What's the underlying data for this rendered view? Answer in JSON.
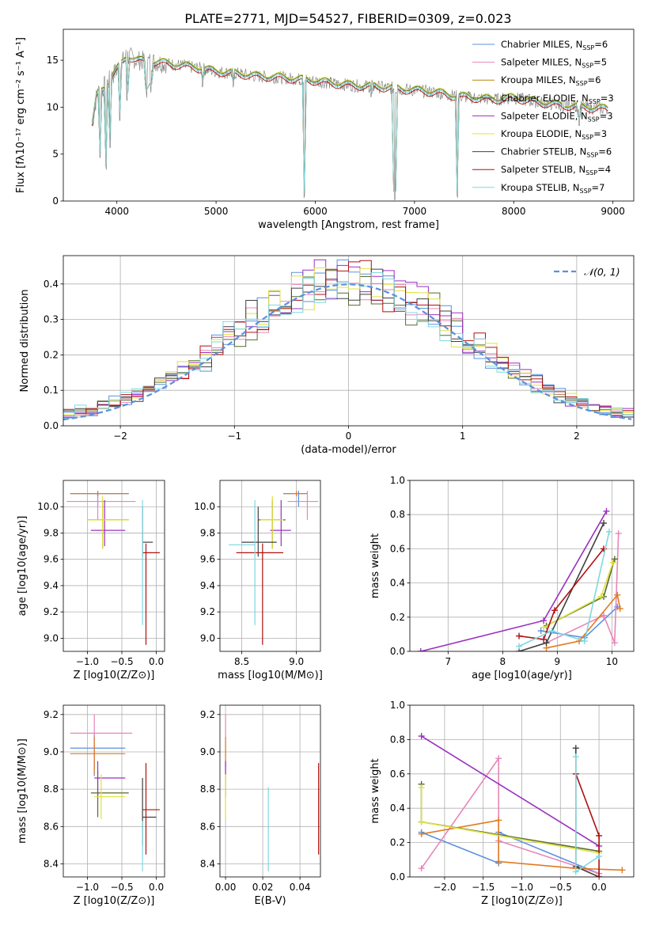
{
  "figure_title": "PLATE=2771, MJD=54527, FIBERID=0309, z=0.023",
  "colors": {
    "Chabrier MILES": "#5b8fe0",
    "Salpeter MILES": "#e786b8",
    "Kroupa MILES": "#b8860b",
    "Chabrier ELODIE": "#556b2f",
    "Salpeter ELODIE": "#9b30c0",
    "Kroupa ELODIE": "#e0e040",
    "Chabrier STELIB": "#404040",
    "Salpeter STELIB": "#b01010",
    "Kroupa STELIB": "#7fd8e0",
    "orange": "#e07b20",
    "normal_curve": "#5b8fe0"
  },
  "chart_data": [
    {
      "id": "spectrum",
      "type": "line",
      "xlabel": "wavelength [Angstrom, rest frame]",
      "ylabel": "Flux [fλ10⁻¹⁷ erg cm⁻² s⁻¹ A⁻¹]",
      "xlim": [
        3460,
        9210
      ],
      "ylim": [
        0,
        18.3
      ],
      "xticks": [
        4000,
        5000,
        6000,
        7000,
        8000,
        9000
      ],
      "yticks": [
        0,
        5,
        10,
        15
      ],
      "legend": "top-right",
      "legend_entries": [
        {
          "name": "Chabrier MILES",
          "nssp": "6"
        },
        {
          "name": "Salpeter MILES",
          "nssp": "5"
        },
        {
          "name": "Kroupa MILES",
          "nssp": "6"
        },
        {
          "name": "Chabrier ELODIE",
          "nssp": "3"
        },
        {
          "name": "Salpeter ELODIE",
          "nssp": "3"
        },
        {
          "name": "Kroupa ELODIE",
          "nssp": "3"
        },
        {
          "name": "Chabrier STELIB",
          "nssp": "6"
        },
        {
          "name": "Salpeter STELIB",
          "nssp": "4"
        },
        {
          "name": "Kroupa STELIB",
          "nssp": "7"
        }
      ],
      "continuum": [
        [
          3750,
          8.0
        ],
        [
          3800,
          11.5
        ],
        [
          3900,
          12.5
        ],
        [
          4000,
          14.0
        ],
        [
          4100,
          15.5
        ],
        [
          4200,
          15.0
        ],
        [
          4400,
          14.8
        ],
        [
          4600,
          14.5
        ],
        [
          4800,
          14.2
        ],
        [
          5000,
          13.8
        ],
        [
          5200,
          13.6
        ],
        [
          5400,
          13.3
        ],
        [
          5600,
          13.2
        ],
        [
          5800,
          13.0
        ],
        [
          6000,
          12.8
        ],
        [
          6200,
          12.5
        ],
        [
          6400,
          12.3
        ],
        [
          6600,
          12.2
        ],
        [
          6800,
          12.0
        ],
        [
          7000,
          11.8
        ],
        [
          7200,
          11.6
        ],
        [
          7400,
          11.2
        ],
        [
          7600,
          11.0
        ],
        [
          7800,
          10.8
        ],
        [
          8000,
          11.0
        ],
        [
          8200,
          10.6
        ],
        [
          8400,
          10.3
        ],
        [
          8600,
          10.1
        ],
        [
          8800,
          9.9
        ],
        [
          8950,
          9.8
        ]
      ],
      "features": [
        [
          3830,
          4.2
        ],
        [
          3890,
          3.0
        ],
        [
          3935,
          5.5
        ],
        [
          4030,
          8.5
        ],
        [
          4102,
          10.5
        ],
        [
          4300,
          11.0
        ],
        [
          4340,
          11.5
        ],
        [
          4861,
          12.0
        ],
        [
          5175,
          11.8
        ],
        [
          5890,
          0.0
        ],
        [
          6563,
          10.5
        ],
        [
          6800,
          0.0
        ],
        [
          7430,
          0.0
        ],
        [
          8500,
          9.0
        ],
        [
          8660,
          8.0
        ]
      ]
    },
    {
      "id": "residuals",
      "type": "histogram",
      "xlabel": "(data-model)/error",
      "ylabel": "Normed distribution",
      "xlim": [
        -2.5,
        2.5
      ],
      "ylim": [
        0,
        0.48
      ],
      "xticks": [
        -2,
        -1,
        0,
        1,
        2
      ],
      "yticks": [
        0.0,
        0.1,
        0.2,
        0.3,
        0.4
      ],
      "legend_label": "𝒩(0, 1)",
      "legend": "top-right"
    },
    {
      "id": "age_vs_Z",
      "type": "errorbar",
      "xlabel": "Z [log10(Z/Z⊙)]",
      "ylabel": "age [log10(age/yr)]",
      "xlim": [
        -1.35,
        0.12
      ],
      "ylim": [
        8.9,
        10.2
      ],
      "xticks": [
        -1.0,
        -0.5,
        0.0
      ],
      "yticks": [
        9.0,
        9.2,
        9.4,
        9.6,
        9.8,
        10.0
      ],
      "points": [
        {
          "s": "Chabrier MILES",
          "x": -0.85,
          "xlo": -1.25,
          "xhi": -0.4,
          "y": 10.1,
          "ylo": 10.0,
          "yhi": 10.12
        },
        {
          "s": "Salpeter MILES",
          "x": -0.85,
          "xlo": -1.3,
          "xhi": -0.3,
          "y": 10.04,
          "ylo": 9.9,
          "yhi": 10.1
        },
        {
          "s": "orange",
          "x": -0.85,
          "xlo": -1.25,
          "xhi": -0.4,
          "y": 10.1,
          "ylo": 10.08,
          "yhi": 10.12
        },
        {
          "s": "Chabrier ELODIE",
          "x": -0.78,
          "xlo": -1.0,
          "xhi": -0.4,
          "y": 9.9,
          "ylo": 9.68,
          "yhi": 10.05
        },
        {
          "s": "Salpeter ELODIE",
          "x": -0.75,
          "xlo": -0.95,
          "xhi": -0.45,
          "y": 9.82,
          "ylo": 9.7,
          "yhi": 10.05
        },
        {
          "s": "Kroupa ELODIE",
          "x": -0.78,
          "xlo": -1.0,
          "xhi": -0.4,
          "y": 9.9,
          "ylo": 9.68,
          "yhi": 10.08
        },
        {
          "s": "Chabrier STELIB",
          "x": -0.2,
          "xlo": -0.2,
          "xhi": -0.05,
          "y": 9.73,
          "ylo": 9.62,
          "yhi": 10.0
        },
        {
          "s": "Salpeter STELIB",
          "x": -0.15,
          "xlo": -0.2,
          "xhi": 0.05,
          "y": 9.65,
          "ylo": 8.95,
          "yhi": 9.72
        },
        {
          "s": "Kroupa STELIB",
          "x": -0.2,
          "xlo": -0.2,
          "xhi": -0.2,
          "y": 9.7,
          "ylo": 9.1,
          "yhi": 10.05
        }
      ]
    },
    {
      "id": "age_vs_mass",
      "type": "errorbar",
      "xlabel": "mass [log10(M/M⊙)]",
      "ylabel": "",
      "xlim": [
        8.3,
        9.22
      ],
      "ylim": [
        8.9,
        10.2
      ],
      "xticks": [
        8.5,
        9.0
      ],
      "yticks": [
        9.0,
        9.2,
        9.4,
        9.6,
        9.8,
        10.0
      ],
      "points": [
        {
          "s": "Chabrier MILES",
          "x": 9.02,
          "xlo": 8.88,
          "xhi": 9.1,
          "y": 10.1,
          "ylo": 10.0,
          "yhi": 10.12
        },
        {
          "s": "Salpeter MILES",
          "x": 9.1,
          "xlo": 8.92,
          "xhi": 9.2,
          "y": 10.04,
          "ylo": 9.9,
          "yhi": 10.12
        },
        {
          "s": "orange",
          "x": 9.0,
          "xlo": 8.88,
          "xhi": 9.08,
          "y": 10.1,
          "ylo": 10.08,
          "yhi": 10.12
        },
        {
          "s": "Chabrier ELODIE",
          "x": 8.78,
          "xlo": 8.65,
          "xhi": 8.9,
          "y": 9.9,
          "ylo": 9.68,
          "yhi": 10.05
        },
        {
          "s": "Salpeter ELODIE",
          "x": 8.86,
          "xlo": 8.76,
          "xhi": 8.95,
          "y": 9.82,
          "ylo": 9.7,
          "yhi": 10.05
        },
        {
          "s": "Kroupa ELODIE",
          "x": 8.78,
          "xlo": 8.67,
          "xhi": 8.88,
          "y": 9.9,
          "ylo": 9.68,
          "yhi": 10.08
        },
        {
          "s": "Chabrier STELIB",
          "x": 8.65,
          "xlo": 8.5,
          "xhi": 8.82,
          "y": 9.73,
          "ylo": 9.62,
          "yhi": 10.0
        },
        {
          "s": "Salpeter STELIB",
          "x": 8.69,
          "xlo": 8.45,
          "xhi": 8.88,
          "y": 9.65,
          "ylo": 8.95,
          "yhi": 9.72
        },
        {
          "s": "Kroupa STELIB",
          "x": 8.62,
          "xlo": 8.38,
          "xhi": 8.62,
          "y": 9.71,
          "ylo": 9.1,
          "yhi": 10.05
        }
      ]
    },
    {
      "id": "weight_vs_age",
      "type": "line",
      "xlabel": "age [log10(age/yr)]",
      "ylabel": "mass weight",
      "xlim": [
        6.3,
        10.4
      ],
      "ylim": [
        0,
        1.0
      ],
      "xticks": [
        7,
        8,
        9,
        10
      ],
      "yticks": [
        0.0,
        0.2,
        0.4,
        0.6,
        0.8,
        1.0
      ],
      "series": [
        {
          "s": "Chabrier MILES",
          "pts": [
            [
              8.7,
              0.12
            ],
            [
              9.5,
              0.08
            ],
            [
              10.1,
              0.26
            ]
          ]
        },
        {
          "s": "Salpeter MILES",
          "pts": [
            [
              8.8,
              0.05
            ],
            [
              9.85,
              0.21
            ],
            [
              10.05,
              0.05
            ],
            [
              10.12,
              0.69
            ]
          ]
        },
        {
          "s": "orange",
          "pts": [
            [
              8.8,
              0.02
            ],
            [
              9.4,
              0.06
            ],
            [
              10.1,
              0.33
            ],
            [
              10.15,
              0.25
            ]
          ]
        },
        {
          "s": "Chabrier ELODIE",
          "pts": [
            [
              8.8,
              0.15
            ],
            [
              9.85,
              0.32
            ],
            [
              10.05,
              0.54
            ]
          ]
        },
        {
          "s": "Salpeter ELODIE",
          "pts": [
            [
              6.5,
              0.0
            ],
            [
              8.75,
              0.18
            ],
            [
              9.9,
              0.82
            ]
          ]
        },
        {
          "s": "Kroupa ELODIE",
          "pts": [
            [
              8.75,
              0.14
            ],
            [
              9.8,
              0.32
            ],
            [
              10.02,
              0.52
            ]
          ]
        },
        {
          "s": "Chabrier STELIB",
          "pts": [
            [
              8.3,
              0.0
            ],
            [
              8.8,
              0.05
            ],
            [
              9.85,
              0.75
            ]
          ]
        },
        {
          "s": "Salpeter STELIB",
          "pts": [
            [
              8.3,
              0.09
            ],
            [
              8.75,
              0.07
            ],
            [
              8.95,
              0.24
            ],
            [
              9.85,
              0.6
            ]
          ]
        },
        {
          "s": "Kroupa STELIB",
          "pts": [
            [
              8.3,
              0.03
            ],
            [
              8.9,
              0.12
            ],
            [
              9.5,
              0.06
            ],
            [
              9.95,
              0.7
            ]
          ]
        }
      ]
    },
    {
      "id": "mass_vs_Z",
      "type": "errorbar",
      "xlabel": "Z [log10(Z/Z⊙)]",
      "ylabel": "mass [log10(M/M⊙)]",
      "xlim": [
        -1.35,
        0.12
      ],
      "ylim": [
        8.33,
        9.25
      ],
      "xticks": [
        -1.0,
        -0.5,
        0.0
      ],
      "yticks": [
        8.4,
        8.6,
        8.8,
        9.0,
        9.2
      ],
      "points": [
        {
          "s": "Chabrier MILES",
          "x": -0.9,
          "xlo": -1.25,
          "xhi": -0.45,
          "y": 9.02,
          "ylo": 8.87,
          "yhi": 9.1
        },
        {
          "s": "Salpeter MILES",
          "x": -0.9,
          "xlo": -1.25,
          "xhi": -0.35,
          "y": 9.1,
          "ylo": 8.92,
          "yhi": 9.2
        },
        {
          "s": "orange",
          "x": -0.9,
          "xlo": -1.25,
          "xhi": -0.45,
          "y": 8.99,
          "ylo": 8.88,
          "yhi": 9.08
        },
        {
          "s": "Chabrier ELODIE",
          "x": -0.85,
          "xlo": -0.95,
          "xhi": -0.4,
          "y": 8.78,
          "ylo": 8.65,
          "yhi": 8.9
        },
        {
          "s": "Salpeter ELODIE",
          "x": -0.85,
          "xlo": -0.9,
          "xhi": -0.45,
          "y": 8.86,
          "ylo": 8.76,
          "yhi": 8.95
        },
        {
          "s": "Kroupa ELODIE",
          "x": -0.8,
          "xlo": -0.9,
          "xhi": -0.45,
          "y": 8.76,
          "ylo": 8.64,
          "yhi": 8.88
        },
        {
          "s": "Chabrier STELIB",
          "x": -0.2,
          "xlo": -0.2,
          "xhi": 0.0,
          "y": 8.65,
          "ylo": 8.5,
          "yhi": 8.86
        },
        {
          "s": "Salpeter STELIB",
          "x": -0.15,
          "xlo": -0.2,
          "xhi": 0.05,
          "y": 8.69,
          "ylo": 8.45,
          "yhi": 8.94
        },
        {
          "s": "Kroupa STELIB",
          "x": -0.2,
          "xlo": -0.2,
          "xhi": -0.2,
          "y": 8.6,
          "ylo": 8.36,
          "yhi": 8.63
        }
      ]
    },
    {
      "id": "mass_vs_ebv",
      "type": "errorbar",
      "xlabel": "E(B-V)",
      "ylabel": "",
      "xlim": [
        -0.003,
        0.051
      ],
      "ylim": [
        8.33,
        9.25
      ],
      "xticks": [
        0.0,
        0.02,
        0.04
      ],
      "yticks": [
        8.4,
        8.6,
        8.8,
        9.0,
        9.2
      ],
      "points": [
        {
          "s": "Salpeter MILES",
          "x": 0.0,
          "xlo": 0.0,
          "xhi": 0.0,
          "y": 9.1,
          "ylo": 8.92,
          "yhi": 9.2
        },
        {
          "s": "orange",
          "x": 0.0,
          "xlo": 0.0,
          "xhi": 0.0,
          "y": 8.99,
          "ylo": 8.88,
          "yhi": 9.08
        },
        {
          "s": "Salpeter ELODIE",
          "x": 0.0,
          "xlo": 0.0,
          "xhi": 0.0,
          "y": 8.86,
          "ylo": 8.76,
          "yhi": 8.95
        },
        {
          "s": "Kroupa ELODIE",
          "x": 0.0,
          "xlo": 0.0,
          "xhi": 0.0,
          "y": 8.76,
          "ylo": 8.64,
          "yhi": 8.88
        },
        {
          "s": "Kroupa STELIB",
          "x": 0.023,
          "xlo": 0.023,
          "xhi": 0.023,
          "y": 8.6,
          "ylo": 8.36,
          "yhi": 8.81
        },
        {
          "s": "Salpeter STELIB",
          "x": 0.05,
          "xlo": 0.05,
          "xhi": 0.05,
          "y": 8.69,
          "ylo": 8.45,
          "yhi": 8.94
        }
      ]
    },
    {
      "id": "weight_vs_Z",
      "type": "line",
      "xlabel": "Z [log10(Z/Z⊙)]",
      "ylabel": "mass weight",
      "xlim": [
        -2.45,
        0.45
      ],
      "ylim": [
        0,
        1.0
      ],
      "xticks": [
        -2.0,
        -1.5,
        -1.0,
        -0.5,
        0.0
      ],
      "yticks": [
        0.0,
        0.2,
        0.4,
        0.6,
        0.8,
        1.0
      ],
      "series": [
        {
          "s": "Chabrier MILES",
          "pts": [
            [
              -2.3,
              0.26
            ],
            [
              -1.3,
              0.08
            ],
            [
              -1.3,
              0.26
            ],
            [
              0.0,
              0.02
            ]
          ]
        },
        {
          "s": "Salpeter MILES",
          "pts": [
            [
              -2.3,
              0.05
            ],
            [
              -1.3,
              0.69
            ],
            [
              -1.3,
              0.21
            ],
            [
              0.0,
              0.02
            ]
          ]
        },
        {
          "s": "orange",
          "pts": [
            [
              -2.3,
              0.25
            ],
            [
              -1.3,
              0.33
            ],
            [
              -1.3,
              0.09
            ],
            [
              -0.3,
              0.05
            ],
            [
              0.3,
              0.04
            ]
          ]
        },
        {
          "s": "Chabrier ELODIE",
          "pts": [
            [
              -2.3,
              0.54
            ],
            [
              -2.3,
              0.32
            ],
            [
              0.0,
              0.15
            ]
          ]
        },
        {
          "s": "Salpeter ELODIE",
          "pts": [
            [
              -2.3,
              0.82
            ],
            [
              0.0,
              0.18
            ]
          ]
        },
        {
          "s": "Kroupa ELODIE",
          "pts": [
            [
              -2.3,
              0.52
            ],
            [
              -2.3,
              0.32
            ],
            [
              0.0,
              0.14
            ]
          ]
        },
        {
          "s": "Chabrier STELIB",
          "pts": [
            [
              -0.3,
              0.75
            ],
            [
              -0.3,
              0.06
            ],
            [
              0.0,
              0.0
            ]
          ]
        },
        {
          "s": "Salpeter STELIB",
          "pts": [
            [
              -0.3,
              0.6
            ],
            [
              0.0,
              0.24
            ],
            [
              0.0,
              0.0
            ]
          ]
        },
        {
          "s": "Kroupa STELIB",
          "pts": [
            [
              -0.3,
              0.7
            ],
            [
              -0.3,
              0.03
            ],
            [
              0.0,
              0.12
            ]
          ]
        }
      ]
    }
  ]
}
